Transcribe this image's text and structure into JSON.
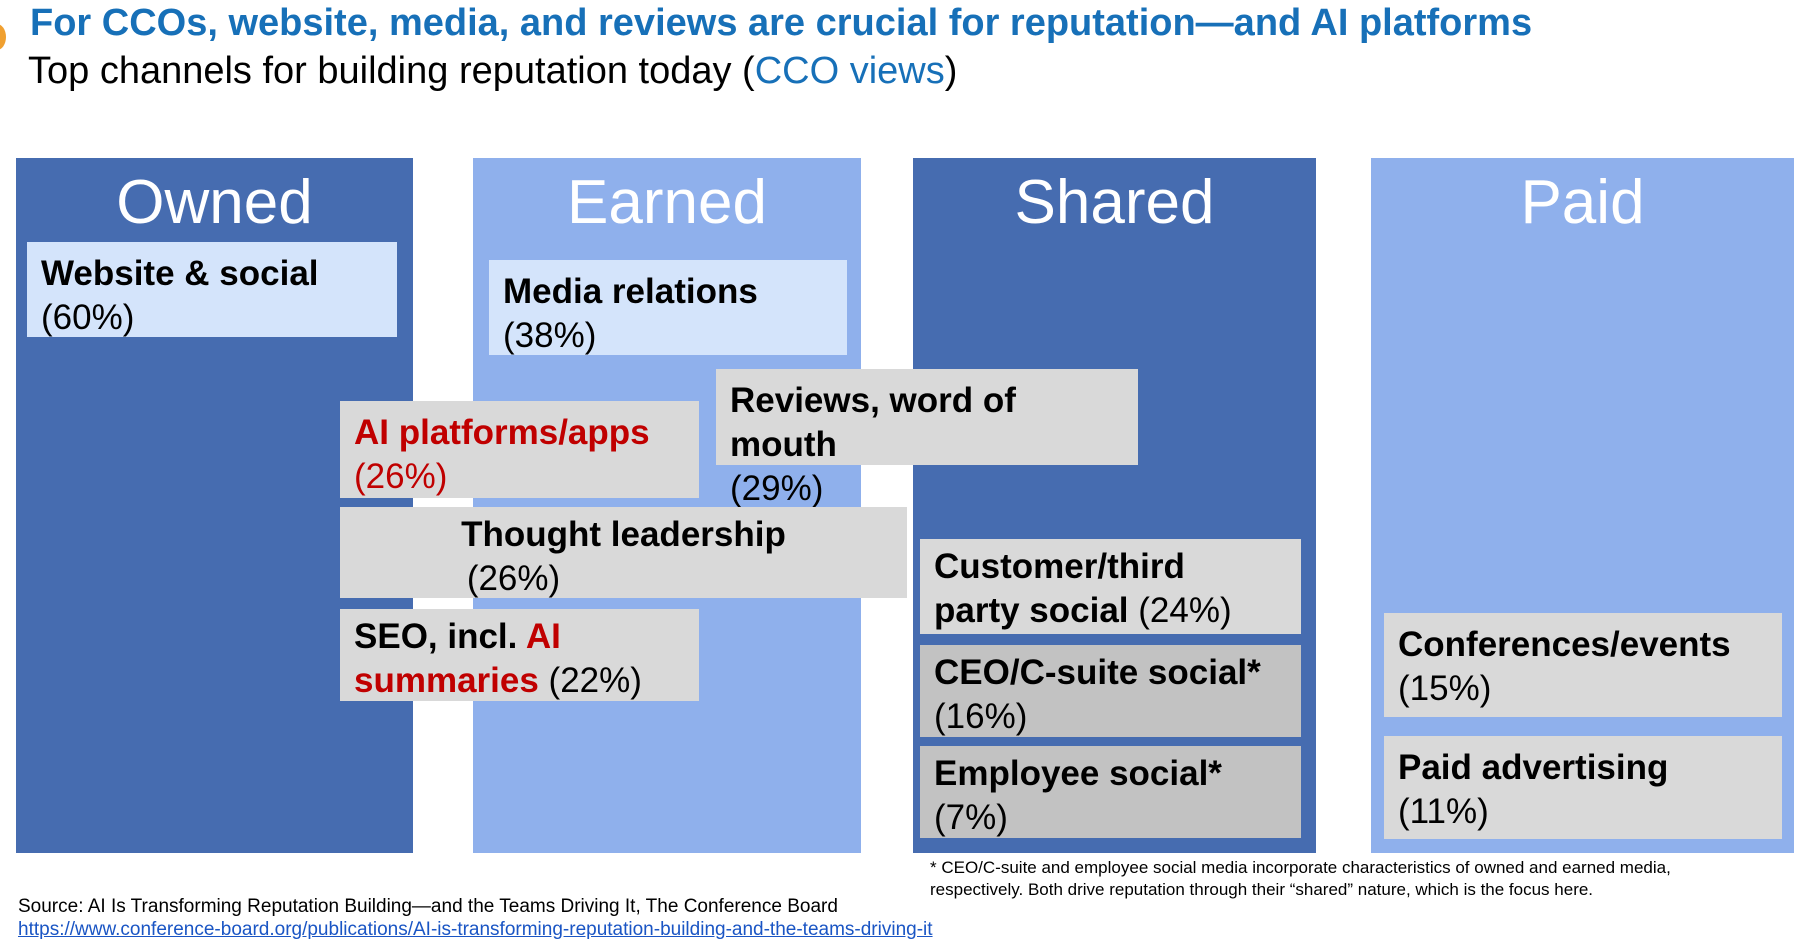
{
  "header": {
    "title": "For CCOs, website, media, and reviews are crucial for reputation—and AI platforms",
    "subtitle_prefix": "Top channels for building reputation today (",
    "subtitle_highlight": "CCO views",
    "subtitle_suffix": ")"
  },
  "columns": [
    {
      "title": "Owned"
    },
    {
      "title": "Earned"
    },
    {
      "title": "Shared"
    },
    {
      "title": "Paid"
    }
  ],
  "channels": {
    "website_social": {
      "label": "Website & social",
      "pct": "(60%)"
    },
    "media_relations": {
      "label": "Media relations",
      "pct": "(38%)"
    },
    "reviews": {
      "label": "Reviews, word of mouth",
      "pct": "(29%)"
    },
    "ai_platforms": {
      "label": "AI platforms/apps",
      "pct": "(26%)"
    },
    "thought_leadership": {
      "label": "Thought leadership",
      "pct": "(26%)"
    },
    "seo": {
      "label_prefix": "SEO, incl. ",
      "label_red_1": "AI",
      "label_red_2": "summaries",
      "pct": " (22%)"
    },
    "customer_social": {
      "label_line1": "Customer/third",
      "label_line2": "party social",
      "pct": " (24%)"
    },
    "ceo_social": {
      "label": "CEO/C-suite social*",
      "pct": "(16%)"
    },
    "employee_social": {
      "label": "Employee social*",
      "pct": "(7%)"
    },
    "conferences": {
      "label": "Conferences/events",
      "pct": "(15%)"
    },
    "paid_advertising": {
      "label": "Paid advertising",
      "pct": "(11%)"
    }
  },
  "footnote": {
    "line1": "* CEO/C-suite and employee social media incorporate characteristics of owned and earned media,",
    "line2": "respectively. Both drive reputation through their “shared” nature, which is the focus here."
  },
  "source": {
    "text": "Source: AI Is Transforming Reputation Building—and the Teams Driving It, The Conference Board",
    "url": "https://www.conference-board.org/publications/AI-is-transforming-reputation-building-and-the-teams-driving-it"
  },
  "colors": {
    "title_blue": "#1770b8",
    "column_dark": "#466cb0",
    "column_light": "#8fb0ec",
    "box_pale": "#d4e4fb",
    "box_gray": "#d9d9d9",
    "box_mid": "#c2c2c2",
    "highlight_red": "#c00000"
  }
}
